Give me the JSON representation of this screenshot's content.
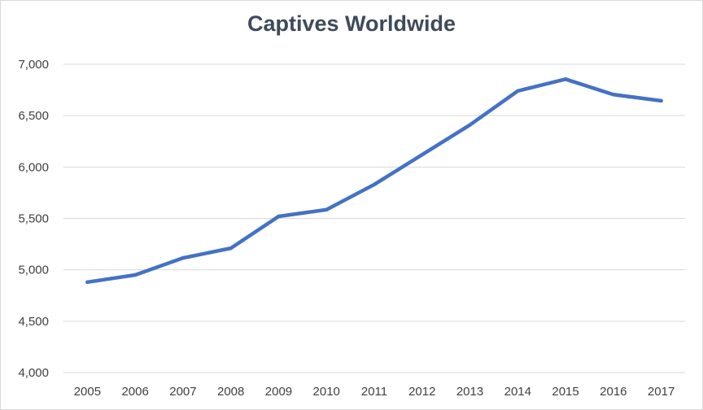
{
  "chart_data": {
    "type": "line",
    "title": "Captives Worldwide",
    "xlabel": "",
    "ylabel": "",
    "categories": [
      "2005",
      "2006",
      "2007",
      "2008",
      "2009",
      "2010",
      "2011",
      "2012",
      "2013",
      "2014",
      "2015",
      "2016",
      "2017"
    ],
    "series": [
      {
        "values": [
          4880,
          4950,
          5115,
          5210,
          5520,
          5585,
          5830,
          6120,
          6410,
          6740,
          6855,
          6705,
          6645
        ]
      }
    ],
    "ylim": [
      4000,
      7000
    ],
    "yticks": [
      4000,
      4500,
      5000,
      5500,
      6000,
      6500,
      7000
    ],
    "ytick_labels": [
      "4,000",
      "4,500",
      "5,000",
      "5,500",
      "6,000",
      "6,500",
      "7,000"
    ],
    "grid": "horizontal",
    "legend": "none",
    "line_color": "#4472c4",
    "grid_color": "#d9d9d9"
  }
}
